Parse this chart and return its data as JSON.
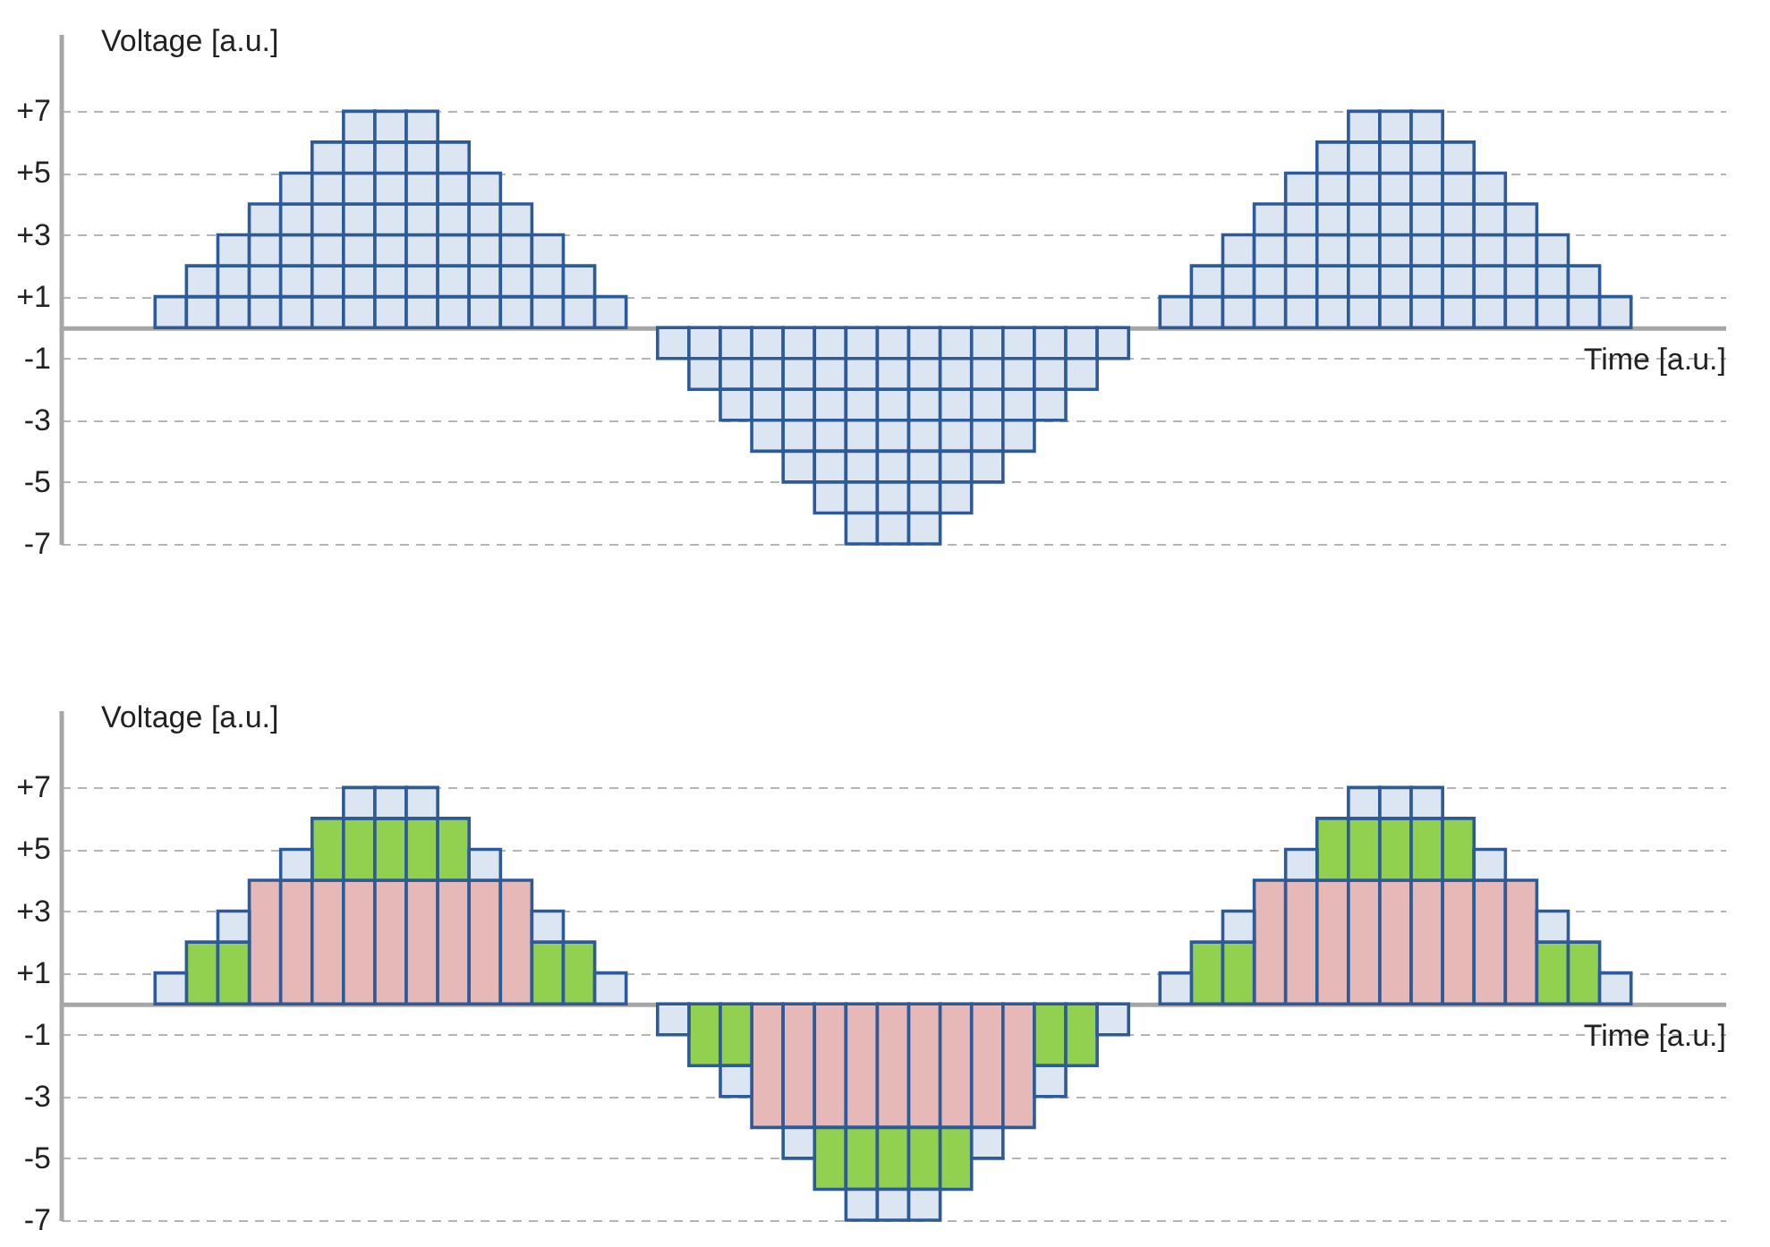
{
  "chart_data": [
    {
      "type": "bar",
      "stacked": true,
      "xlabel": "Time [a.u.]",
      "ylabel": "Voltage [a.u.]",
      "grid": "y",
      "ylim": [
        -7,
        9.5
      ],
      "yticks": [
        {
          "value": 7,
          "label": "+7"
        },
        {
          "value": 5,
          "label": "+5"
        },
        {
          "value": 3,
          "label": "+3"
        },
        {
          "value": 1,
          "label": "+1"
        },
        -1,
        -3,
        -5,
        -7
      ],
      "categories": [
        null,
        null,
        null,
        null,
        null,
        null,
        null,
        null,
        null,
        null,
        null,
        null,
        null,
        null,
        null,
        null,
        null,
        null,
        null,
        null,
        null,
        null,
        null,
        null,
        null,
        null,
        null,
        null,
        null,
        null,
        null,
        null,
        null,
        null,
        null,
        null,
        null,
        null,
        null,
        null,
        null,
        null,
        null,
        null,
        null,
        null,
        null,
        null,
        null,
        null,
        null,
        null,
        null
      ],
      "series": [
        {
          "color": "#dce6f2",
          "values": [
            null,
            null,
            null,
            1,
            1,
            1,
            1,
            1,
            1,
            1,
            1,
            1,
            1,
            1,
            1,
            1,
            1,
            1,
            null,
            -1,
            -1,
            -1,
            -1,
            -1,
            -1,
            -1,
            -1,
            -1,
            -1,
            -1,
            -1,
            -1,
            -1,
            -1,
            null,
            1,
            1,
            1,
            1,
            1,
            1,
            1,
            1,
            1,
            1,
            1,
            1,
            1,
            1,
            1,
            null,
            null,
            null
          ]
        },
        {
          "color": "#dce6f2",
          "values": [
            null,
            null,
            null,
            null,
            1,
            1,
            1,
            1,
            1,
            1,
            1,
            1,
            1,
            1,
            1,
            1,
            1,
            null,
            null,
            null,
            -1,
            -1,
            -1,
            -1,
            -1,
            -1,
            -1,
            -1,
            -1,
            -1,
            -1,
            -1,
            -1,
            null,
            null,
            null,
            1,
            1,
            1,
            1,
            1,
            1,
            1,
            1,
            1,
            1,
            1,
            1,
            1,
            null,
            null,
            null,
            null
          ]
        },
        {
          "color": "#dce6f2",
          "values": [
            null,
            null,
            null,
            null,
            null,
            1,
            1,
            1,
            1,
            1,
            1,
            1,
            1,
            1,
            1,
            1,
            null,
            null,
            null,
            null,
            null,
            -1,
            -1,
            -1,
            -1,
            -1,
            -1,
            -1,
            -1,
            -1,
            -1,
            -1,
            null,
            null,
            null,
            null,
            null,
            1,
            1,
            1,
            1,
            1,
            1,
            1,
            1,
            1,
            1,
            1,
            null,
            null,
            null,
            null,
            null
          ]
        },
        {
          "color": "#dce6f2",
          "values": [
            null,
            null,
            null,
            null,
            null,
            null,
            1,
            1,
            1,
            1,
            1,
            1,
            1,
            1,
            1,
            null,
            null,
            null,
            null,
            null,
            null,
            null,
            -1,
            -1,
            -1,
            -1,
            -1,
            -1,
            -1,
            -1,
            -1,
            null,
            null,
            null,
            null,
            null,
            null,
            null,
            1,
            1,
            1,
            1,
            1,
            1,
            1,
            1,
            1,
            null,
            null,
            null,
            null,
            null,
            null
          ]
        },
        {
          "color": "#dce6f2",
          "values": [
            null,
            null,
            null,
            null,
            null,
            null,
            null,
            1,
            1,
            1,
            1,
            1,
            1,
            1,
            null,
            null,
            null,
            null,
            null,
            null,
            null,
            null,
            null,
            -1,
            -1,
            -1,
            -1,
            -1,
            -1,
            -1,
            null,
            null,
            null,
            null,
            null,
            null,
            null,
            null,
            null,
            1,
            1,
            1,
            1,
            1,
            1,
            1,
            null,
            null,
            null,
            null,
            null,
            null,
            null
          ]
        },
        {
          "color": "#dce6f2",
          "values": [
            null,
            null,
            null,
            null,
            null,
            null,
            null,
            null,
            1,
            1,
            1,
            1,
            1,
            null,
            null,
            null,
            null,
            null,
            null,
            null,
            null,
            null,
            null,
            null,
            -1,
            -1,
            -1,
            -1,
            -1,
            null,
            null,
            null,
            null,
            null,
            null,
            null,
            null,
            null,
            null,
            null,
            1,
            1,
            1,
            1,
            1,
            null,
            null,
            null,
            null,
            null,
            null,
            null,
            null
          ]
        },
        {
          "color": "#dce6f2",
          "values": [
            null,
            null,
            null,
            null,
            null,
            null,
            null,
            null,
            null,
            1,
            1,
            1,
            null,
            null,
            null,
            null,
            null,
            null,
            null,
            null,
            null,
            null,
            null,
            null,
            null,
            -1,
            -1,
            -1,
            null,
            null,
            null,
            null,
            null,
            null,
            null,
            null,
            null,
            null,
            null,
            null,
            null,
            1,
            1,
            1,
            null,
            null,
            null,
            null,
            null,
            null,
            null,
            null,
            null
          ]
        }
      ]
    },
    {
      "type": "bar",
      "stacked": true,
      "xlabel": "Time [a.u.]",
      "ylabel": "Voltage [a.u.]",
      "grid": "y",
      "ylim": [
        -7,
        9.5
      ],
      "yticks": [
        {
          "value": 7,
          "label": "+7"
        },
        {
          "value": 5,
          "label": "+5"
        },
        {
          "value": 3,
          "label": "+3"
        },
        {
          "value": 1,
          "label": "+1"
        },
        -1,
        -3,
        -5,
        -7
      ],
      "categories": [
        null,
        null,
        null,
        null,
        null,
        null,
        null,
        null,
        null,
        null,
        null,
        null,
        null,
        null,
        null,
        null,
        null,
        null,
        null,
        null,
        null,
        null,
        null,
        null,
        null,
        null,
        null,
        null,
        null,
        null,
        null,
        null,
        null,
        null,
        null,
        null,
        null,
        null,
        null,
        null,
        null,
        null,
        null,
        null,
        null,
        null,
        null,
        null,
        null,
        null,
        null,
        null,
        null
      ],
      "series": [
        {
          "color": "#e6b9b8",
          "values": [
            null,
            null,
            null,
            null,
            null,
            null,
            4,
            4,
            4,
            4,
            4,
            4,
            4,
            4,
            4,
            null,
            null,
            null,
            null,
            null,
            null,
            null,
            -4,
            -4,
            -4,
            -4,
            -4,
            -4,
            -4,
            -4,
            -4,
            null,
            null,
            null,
            null,
            null,
            null,
            null,
            4,
            4,
            4,
            4,
            4,
            4,
            4,
            4,
            4,
            null,
            null,
            null,
            null,
            null,
            null
          ]
        },
        {
          "color": "#92d050",
          "values": [
            null,
            null,
            null,
            null,
            2,
            2,
            null,
            null,
            2,
            2,
            2,
            2,
            2,
            null,
            null,
            2,
            2,
            null,
            null,
            null,
            -2,
            -2,
            null,
            null,
            -2,
            -2,
            -2,
            -2,
            -2,
            null,
            null,
            -2,
            -2,
            null,
            null,
            null,
            2,
            2,
            null,
            null,
            2,
            2,
            2,
            2,
            2,
            null,
            null,
            2,
            2,
            null,
            null,
            null,
            null
          ]
        },
        {
          "color": "#dce6f2",
          "values": [
            null,
            null,
            null,
            1,
            null,
            1,
            null,
            1,
            null,
            1,
            1,
            1,
            null,
            1,
            null,
            1,
            null,
            1,
            null,
            -1,
            null,
            -1,
            null,
            -1,
            null,
            -1,
            -1,
            -1,
            null,
            -1,
            null,
            -1,
            null,
            -1,
            null,
            1,
            null,
            1,
            null,
            1,
            null,
            1,
            1,
            1,
            null,
            1,
            null,
            1,
            null,
            1,
            null,
            null,
            null
          ]
        }
      ]
    }
  ]
}
